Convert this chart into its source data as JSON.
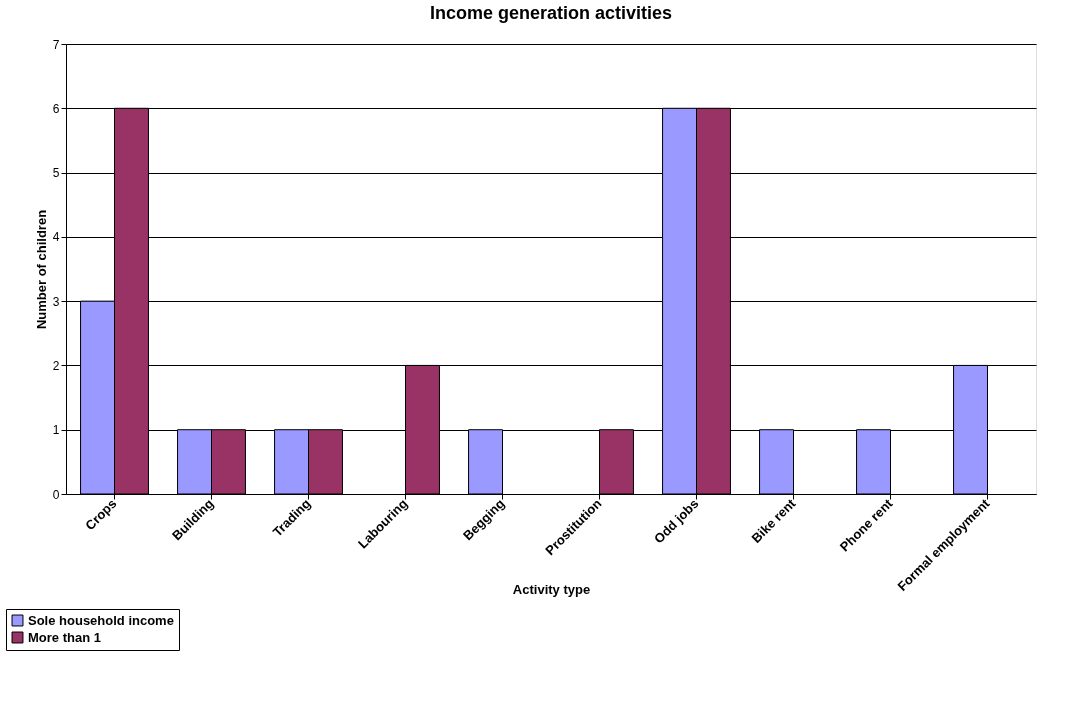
{
  "chart_data": {
    "type": "bar",
    "title": "Income generation activities",
    "xlabel": "Activity type",
    "ylabel": "Number of children",
    "categories": [
      "Crops",
      "Building",
      "Trading",
      "Labouring",
      "Begging",
      "Prostitution",
      "Odd jobs",
      "Bike rent",
      "Phone rent",
      "Formal employment"
    ],
    "series": [
      {
        "name": "Sole household income",
        "color": "#9999ff",
        "values": [
          3,
          1,
          1,
          null,
          1,
          null,
          6,
          1,
          1,
          2
        ]
      },
      {
        "name": "More than 1",
        "color": "#993366",
        "values": [
          6,
          1,
          1,
          2,
          null,
          1,
          6,
          null,
          null,
          null
        ]
      }
    ],
    "ylim": [
      0,
      7
    ],
    "yticks": [
      0,
      1,
      2,
      3,
      4,
      5,
      6,
      7
    ],
    "grid": "y",
    "legend": "bottom left"
  }
}
